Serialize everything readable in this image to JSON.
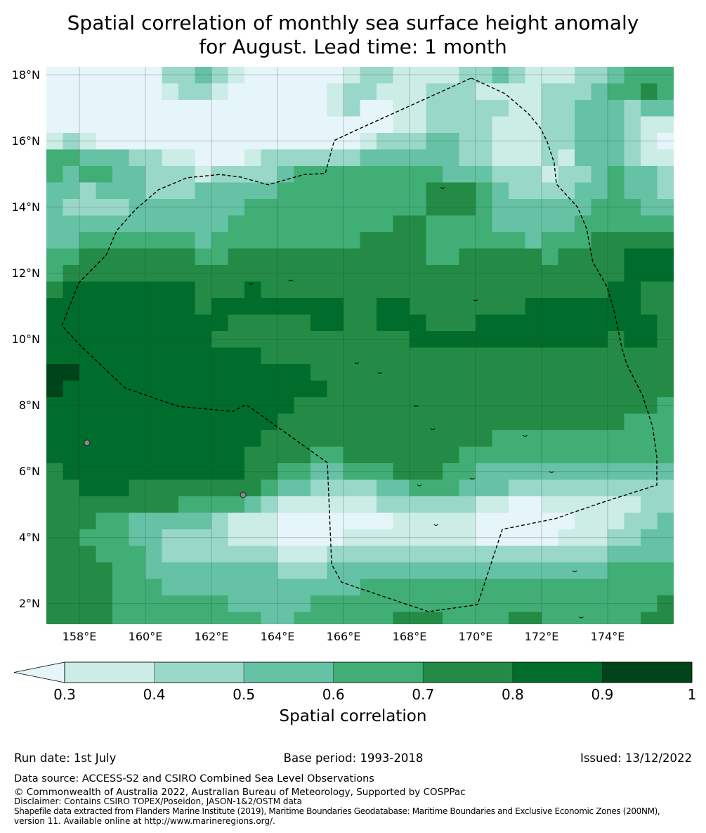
{
  "title": {
    "line1": "Spatial correlation of monthly sea surface height anomaly",
    "line2": "for August. Lead time: 1 month"
  },
  "map": {
    "extent_lon": [
      157,
      176
    ],
    "extent_lat": [
      1.38,
      18.25
    ],
    "grid_origin_lon": 157,
    "grid_top_lat": 18.25,
    "cell_deg": 0.5,
    "lat_ticks": [
      {
        "value": 18,
        "label": "18°N"
      },
      {
        "value": 16,
        "label": "16°N"
      },
      {
        "value": 14,
        "label": "14°N"
      },
      {
        "value": 12,
        "label": "12°N"
      },
      {
        "value": 10,
        "label": "10°N"
      },
      {
        "value": 8,
        "label": "8°N"
      },
      {
        "value": 6,
        "label": "6°N"
      },
      {
        "value": 4,
        "label": "4°N"
      },
      {
        "value": 2,
        "label": "2°N"
      }
    ],
    "lon_ticks": [
      {
        "value": 158,
        "label": "158°E"
      },
      {
        "value": 160,
        "label": "160°E"
      },
      {
        "value": 162,
        "label": "162°E"
      },
      {
        "value": 164,
        "label": "164°E"
      },
      {
        "value": 166,
        "label": "166°E"
      },
      {
        "value": 168,
        "label": "168°E"
      },
      {
        "value": 170,
        "label": "170°E"
      },
      {
        "value": 172,
        "label": "172°E"
      },
      {
        "value": 174,
        "label": "174°E"
      }
    ],
    "correlation_class_rows": [
      "00000002232100000012211112232111223444",
      "00000001221000000122111222111122234454",
      "00000000000000000120011222221122333233",
      "00000000000000000000011222211122333211",
      "12100000000000000001222332211122333210",
      "44333221100012222223333332211121333211",
      "43443322212222344444444433322212234332",
      "33233322233333444444444555432222334332",
      "32222333333344444444444555433333344433",
      "33333333333444444444455444433333444444",
      "33444444434444444445555444444344455555",
      "44555555544555555555555445555545555666",
      "45555555555555555555555555555555555666",
      "56666666655565555555555555555555556655",
      "66666666656666666655665555555666666655",
      "66666666666555556655666555666666666665",
      "66666666665555555555556666666666665665",
      "66666666666665555555555555555555555555",
      "77666666666666665555555555555555555555",
      "76666666666666666555555555555555555555",
      "66666666666666655555555555555555555554",
      "66666666666666555555555555555555555444",
      "66666666666665555555555555544444444444",
      "66666666666655554455555554444444444444",
      "56666666666655443344455544333333333333",
      "55666555555554332222334443332222222222",
      "55555555444432111111222222110011111122",
      "55544333332111000000011111000000111223",
      "55444332222111000011111111000001112233",
      "55544432222222111222222222222222223333",
      "55554433333333222333333333333333334444",
      "55554443333333333334444444444444444444",
      "55554444444333334444444444444444444445",
      "55554444444443344444455544445544444455"
    ],
    "eez_boundary_lonlat": [
      [
        169.87,
        17.91
      ],
      [
        170.89,
        17.44
      ],
      [
        171.6,
        16.83
      ],
      [
        171.96,
        16.4
      ],
      [
        172.17,
        15.98
      ],
      [
        172.38,
        15.34
      ],
      [
        172.45,
        14.7
      ],
      [
        173.09,
        14.0
      ],
      [
        173.36,
        13.36
      ],
      [
        173.55,
        12.34
      ],
      [
        173.98,
        11.59
      ],
      [
        174.21,
        10.8
      ],
      [
        174.43,
        9.74
      ],
      [
        174.57,
        9.27
      ],
      [
        175.06,
        8.29
      ],
      [
        175.36,
        7.36
      ],
      [
        175.49,
        6.44
      ],
      [
        175.49,
        5.59
      ],
      [
        173.94,
        5.1
      ],
      [
        172.4,
        4.57
      ],
      [
        170.81,
        4.25
      ],
      [
        170.06,
        1.97
      ],
      [
        168.57,
        1.76
      ],
      [
        166.49,
        2.46
      ],
      [
        165.94,
        2.65
      ],
      [
        165.64,
        3.19
      ],
      [
        165.51,
        6.27
      ],
      [
        163.06,
        8.02
      ],
      [
        162.64,
        7.82
      ],
      [
        161.0,
        7.97
      ],
      [
        159.38,
        8.53
      ],
      [
        157.99,
        9.85
      ],
      [
        157.47,
        10.42
      ],
      [
        157.99,
        11.72
      ],
      [
        158.81,
        12.55
      ],
      [
        159.13,
        13.29
      ],
      [
        159.7,
        13.93
      ],
      [
        160.4,
        14.53
      ],
      [
        161.26,
        14.89
      ],
      [
        162.26,
        14.99
      ],
      [
        162.89,
        14.91
      ],
      [
        163.72,
        14.68
      ],
      [
        164.81,
        14.99
      ],
      [
        165.45,
        15.02
      ],
      [
        165.72,
        16.02
      ],
      [
        166.49,
        16.38
      ],
      [
        169.87,
        17.91
      ]
    ],
    "islands_lonlat": [
      [
        158.23,
        6.87
      ],
      [
        162.96,
        5.29
      ]
    ],
    "atolls_lonlat": [
      [
        169.0,
        14.6
      ],
      [
        166.4,
        9.3
      ],
      [
        167.1,
        9.0
      ],
      [
        168.2,
        8.0
      ],
      [
        168.7,
        7.3
      ],
      [
        171.5,
        7.1
      ],
      [
        172.3,
        6.0
      ],
      [
        169.9,
        5.8
      ],
      [
        173.0,
        3.0
      ],
      [
        173.2,
        1.6
      ],
      [
        168.8,
        4.4
      ],
      [
        168.3,
        5.6
      ],
      [
        170.0,
        11.2
      ],
      [
        163.2,
        11.7
      ],
      [
        164.4,
        11.8
      ]
    ]
  },
  "colorbar": {
    "label": "Spatial correlation",
    "under_color": "#e5f5f9",
    "levels": [
      {
        "lo": 0.3,
        "hi": 0.4,
        "color": "#ccece6"
      },
      {
        "lo": 0.4,
        "hi": 0.5,
        "color": "#99d8c9"
      },
      {
        "lo": 0.5,
        "hi": 0.6,
        "color": "#66c2a4"
      },
      {
        "lo": 0.6,
        "hi": 0.7,
        "color": "#41ae76"
      },
      {
        "lo": 0.7,
        "hi": 0.8,
        "color": "#238b45"
      },
      {
        "lo": 0.8,
        "hi": 0.9,
        "color": "#006d2c"
      },
      {
        "lo": 0.9,
        "hi": 1.0,
        "color": "#00441b"
      }
    ],
    "tick_labels": [
      "0.3",
      "0.4",
      "0.5",
      "0.6",
      "0.7",
      "0.8",
      "0.9",
      "1"
    ]
  },
  "footer": {
    "run_date": "Run date: 1st July",
    "base_period": "Base period: 1993-2018",
    "issued": "Issued: 13/12/2022",
    "data_source": "Data source: ACCESS-S2 and CSIRO Combined Sea Level Observations",
    "copyright": "© Commonwealth of Australia 2022, Australian Bureau of Meteorology, Supported by COSPPac",
    "disclaimer": "Disclaimer: Contains CSIRO TOPEX/Poseidon, JASON-1&2/OSTM data",
    "shapefile_line1": "Shapefile data extracted from Flanders Marine Institute (2019), Maritime Boundaries Geodatabase: Maritime Boundaries and Exclusive Economic Zones (200NM),",
    "shapefile_line2": "version 11. Available online at http://www.marineregions.org/."
  }
}
